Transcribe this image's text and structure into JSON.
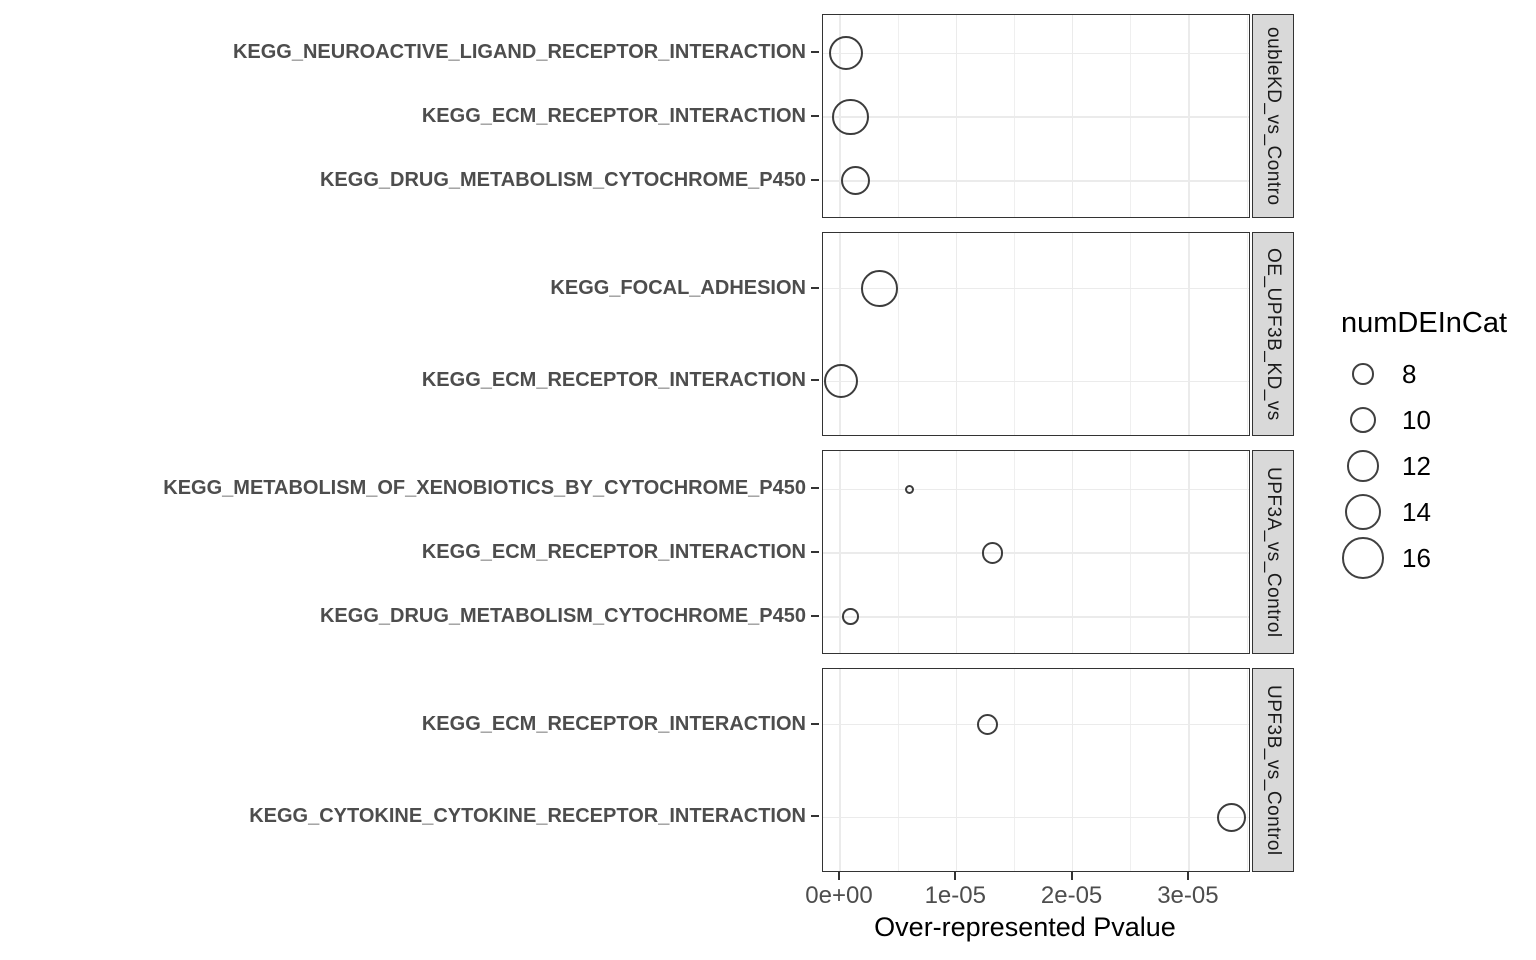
{
  "chart_data": {
    "type": "scatter",
    "title": "",
    "xlabel": "Over-represented Pvalue",
    "x_axis": {
      "tick_labels": [
        "0e+00",
        "1e-05",
        "2e-05",
        "3e-05"
      ],
      "tick_values": [
        0,
        1e-05,
        2e-05,
        3e-05
      ],
      "minor_values": [
        5e-06,
        1.5e-05,
        2.5e-05,
        3.5e-05
      ],
      "xlim": [
        -1.46e-06,
        3.534e-05
      ]
    },
    "legend": {
      "title": "numDEInCat",
      "sizes": [
        8,
        10,
        12,
        14,
        16
      ],
      "labels": [
        "8",
        "10",
        "12",
        "14",
        "16"
      ],
      "position": "right"
    },
    "grid": "on",
    "facets": [
      {
        "label": "oubleKD_vs_Contro",
        "rows": [
          {
            "category": "KEGG_NEUROACTIVE_LIGAND_RECEPTOR_INTERACTION",
            "pvalue": 5e-07,
            "numDEInCat": 13
          },
          {
            "category": "KEGG_ECM_RECEPTOR_INTERACTION",
            "pvalue": 9e-07,
            "numDEInCat": 14
          },
          {
            "category": "KEGG_DRUG_METABOLISM_CYTOCHROME_P450",
            "pvalue": 1.3e-06,
            "numDEInCat": 11
          }
        ]
      },
      {
        "label": "OE_UPF3B_KD_vs",
        "rows": [
          {
            "category": "KEGG_FOCAL_ADHESION",
            "pvalue": 3.4e-06,
            "numDEInCat": 14
          },
          {
            "category": "KEGG_ECM_RECEPTOR_INTERACTION",
            "pvalue": 1e-07,
            "numDEInCat": 13
          }
        ]
      },
      {
        "label": "UPF3A_vs_Control",
        "rows": [
          {
            "category": "KEGG_METABOLISM_OF_XENOBIOTICS_BY_CYTOCHROME_P450",
            "pvalue": 6e-06,
            "numDEInCat": 3
          },
          {
            "category": "KEGG_ECM_RECEPTOR_INTERACTION",
            "pvalue": 1.31e-05,
            "numDEInCat": 8
          },
          {
            "category": "KEGG_DRUG_METABOLISM_CYTOCHROME_P450",
            "pvalue": 9e-07,
            "numDEInCat": 6
          }
        ]
      },
      {
        "label": "UPF3B_vs_Control",
        "rows": [
          {
            "category": "KEGG_ECM_RECEPTOR_INTERACTION",
            "pvalue": 1.27e-05,
            "numDEInCat": 8
          },
          {
            "category": "KEGG_CYTOKINE_CYTOKINE_RECEPTOR_INTERACTION",
            "pvalue": 3.37e-05,
            "numDEInCat": 11
          }
        ]
      }
    ],
    "colors": {
      "point_stroke": "#3c3c3c",
      "grid_major": "#ebebeb",
      "panel_border": "#333333",
      "strip_background": "#d9d9d9",
      "axis_text": "#4d4d4d",
      "title_text": "#000000"
    }
  }
}
